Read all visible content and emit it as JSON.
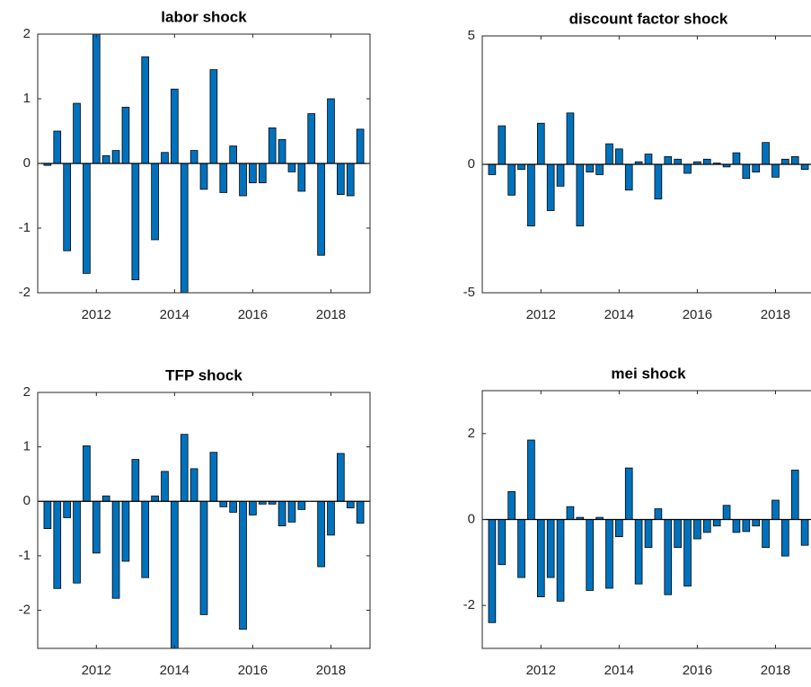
{
  "chart_data": [
    {
      "type": "bar",
      "title": "labor shock",
      "color": "#0072bd",
      "x": [
        2010.75,
        2011,
        2011.25,
        2011.5,
        2011.75,
        2012,
        2012.25,
        2012.5,
        2012.75,
        2013,
        2013.25,
        2013.5,
        2013.75,
        2014,
        2014.25,
        2014.5,
        2014.75,
        2015,
        2015.25,
        2015.5,
        2015.75,
        2016,
        2016.25,
        2016.5,
        2016.75,
        2017,
        2017.25,
        2017.5,
        2017.75,
        2018,
        2018.25,
        2018.5,
        2018.75
      ],
      "values": [
        -0.03,
        0.5,
        -1.35,
        0.93,
        -1.7,
        2.2,
        0.12,
        0.2,
        0.87,
        -1.8,
        1.65,
        -1.18,
        0.17,
        1.15,
        -2.3,
        0.2,
        -0.4,
        1.45,
        -0.45,
        0.27,
        -0.5,
        -0.3,
        -0.3,
        0.55,
        0.37,
        -0.13,
        -0.43,
        0.77,
        -1.42,
        1.0,
        -0.48,
        -0.5,
        0.53
      ],
      "xlim": [
        2010.5,
        2019
      ],
      "xticks": [
        2012,
        2014,
        2016,
        2018
      ],
      "ylim": [
        -2,
        2
      ],
      "yticks": [
        -2,
        -1,
        0,
        1,
        2
      ]
    },
    {
      "type": "bar",
      "title": "discount factor shock",
      "color": "#0072bd",
      "x": [
        2010.75,
        2011,
        2011.25,
        2011.5,
        2011.75,
        2012,
        2012.25,
        2012.5,
        2012.75,
        2013,
        2013.25,
        2013.5,
        2013.75,
        2014,
        2014.25,
        2014.5,
        2014.75,
        2015,
        2015.25,
        2015.5,
        2015.75,
        2016,
        2016.25,
        2016.5,
        2016.75,
        2017,
        2017.25,
        2017.5,
        2017.75,
        2018,
        2018.25,
        2018.5,
        2018.75
      ],
      "values": [
        -0.4,
        1.5,
        -1.2,
        -0.2,
        -2.4,
        1.6,
        -1.8,
        -0.85,
        2.0,
        -2.4,
        -0.3,
        -0.4,
        0.8,
        0.6,
        -1.0,
        0.1,
        0.4,
        -1.35,
        0.3,
        0.2,
        -0.35,
        0.1,
        0.2,
        0.05,
        -0.1,
        0.45,
        -0.55,
        -0.3,
        0.85,
        -0.5,
        0.2,
        0.3,
        -0.2
      ],
      "xlim": [
        2010.5,
        2019
      ],
      "xticks": [
        2012,
        2014,
        2016,
        2018
      ],
      "ylim": [
        -5,
        5
      ],
      "yticks": [
        -5,
        0,
        5
      ]
    },
    {
      "type": "bar",
      "title": "TFP shock",
      "color": "#0072bd",
      "x": [
        2010.75,
        2011,
        2011.25,
        2011.5,
        2011.75,
        2012,
        2012.25,
        2012.5,
        2012.75,
        2013,
        2013.25,
        2013.5,
        2013.75,
        2014,
        2014.25,
        2014.5,
        2014.75,
        2015,
        2015.25,
        2015.5,
        2015.75,
        2016,
        2016.25,
        2016.5,
        2016.75,
        2017,
        2017.25,
        2017.5,
        2017.75,
        2018,
        2018.25,
        2018.5,
        2018.75
      ],
      "values": [
        -0.5,
        -1.6,
        -0.3,
        -1.5,
        1.02,
        -0.95,
        0.1,
        -1.78,
        -1.1,
        0.77,
        -1.4,
        0.1,
        0.55,
        -2.8,
        1.23,
        0.6,
        -2.08,
        0.9,
        -0.1,
        -0.2,
        -2.35,
        -0.25,
        -0.05,
        -0.05,
        -0.45,
        -0.38,
        -0.15,
        0,
        -1.2,
        -0.62,
        0.88,
        -0.12,
        -0.4
      ],
      "xlim": [
        2010.5,
        2019
      ],
      "xticks": [
        2012,
        2014,
        2016,
        2018
      ],
      "ylim": [
        -2.7,
        2
      ],
      "yticks": [
        -2,
        -1,
        0,
        1,
        2
      ]
    },
    {
      "type": "bar",
      "title": "mei shock",
      "color": "#0072bd",
      "x": [
        2010.75,
        2011,
        2011.25,
        2011.5,
        2011.75,
        2012,
        2012.25,
        2012.5,
        2012.75,
        2013,
        2013.25,
        2013.5,
        2013.75,
        2014,
        2014.25,
        2014.5,
        2014.75,
        2015,
        2015.25,
        2015.5,
        2015.75,
        2016,
        2016.25,
        2016.5,
        2016.75,
        2017,
        2017.25,
        2017.5,
        2017.75,
        2018,
        2018.25,
        2018.5,
        2018.75
      ],
      "values": [
        -2.4,
        -1.05,
        0.65,
        -1.35,
        1.85,
        -1.8,
        -1.35,
        -1.9,
        0.3,
        0.05,
        -1.65,
        0.05,
        -1.6,
        -0.4,
        1.2,
        -1.5,
        -0.65,
        0.25,
        -1.75,
        -0.65,
        -1.55,
        -0.45,
        -0.3,
        -0.15,
        0.33,
        -0.3,
        -0.28,
        -0.15,
        -0.65,
        0.45,
        -0.85,
        1.15,
        -0.6
      ],
      "xlim": [
        2010.5,
        2019
      ],
      "xticks": [
        2012,
        2014,
        2016,
        2018
      ],
      "ylim": [
        -3,
        3
      ],
      "yticks": [
        -2,
        0,
        2
      ]
    }
  ]
}
